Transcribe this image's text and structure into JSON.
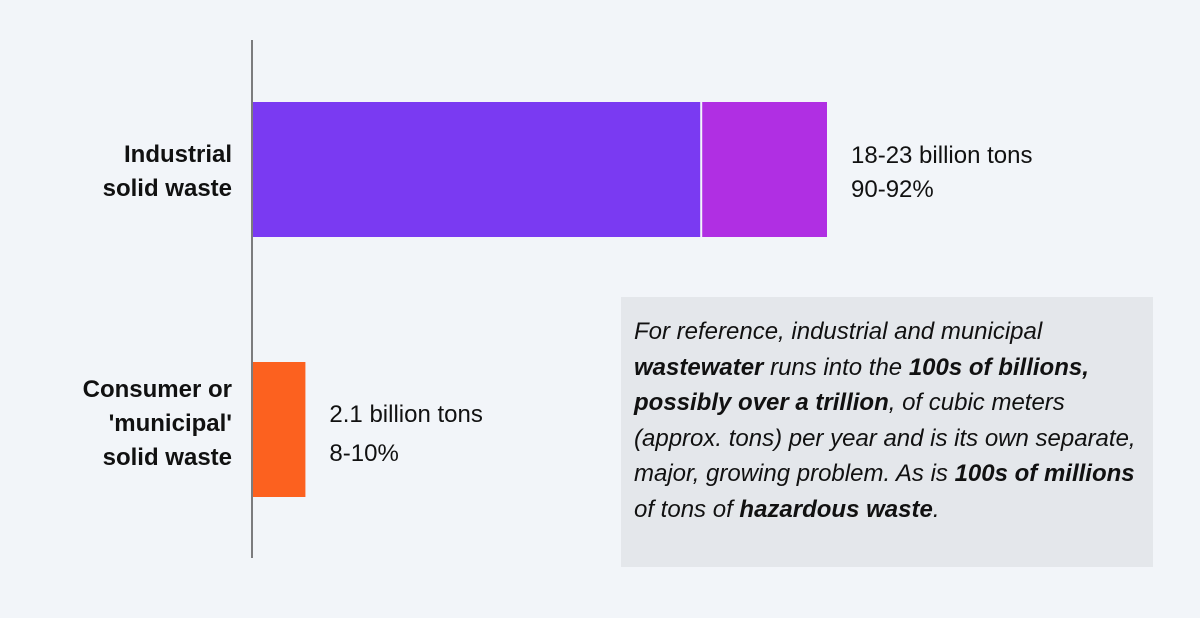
{
  "chart_data": {
    "type": "bar",
    "orientation": "horizontal",
    "categories": [
      [
        "Industrial",
        "solid waste"
      ],
      [
        "Consumer or",
        "'municipal'",
        "solid waste"
      ]
    ],
    "bars": [
      {
        "segments": [
          {
            "value": 18,
            "color": "#7a3af2"
          },
          {
            "value": 5,
            "color": "#b02fe3"
          }
        ],
        "labels": [
          "18-23 billion tons",
          "90-92%"
        ]
      },
      {
        "segments": [
          {
            "value": 2.1,
            "color": "#fc611f"
          }
        ],
        "labels": [
          "2.1 billion tons",
          "8-10%"
        ]
      }
    ],
    "units": "billion tons",
    "xlim": [
      0,
      23
    ],
    "grid": false,
    "legend": "none"
  },
  "note": {
    "runs": [
      {
        "text": "For reference, industrial and municipal ",
        "bold": false
      },
      {
        "text": "wastewater",
        "bold": true
      },
      {
        "text": " runs into the ",
        "bold": false
      },
      {
        "text": "100s of billions, possibly over a trillion",
        "bold": true
      },
      {
        "text": ", of cubic meters (approx. tons) per year and is its own separate, major, growing problem. As is ",
        "bold": false
      },
      {
        "text": "100s of millions",
        "bold": true
      },
      {
        "text": " of tons of ",
        "bold": false
      },
      {
        "text": "hazardous waste",
        "bold": true
      },
      {
        "text": ".",
        "bold": false
      }
    ]
  },
  "colors": {
    "background": "#f2f5f9",
    "note_background": "#e4e7eb",
    "axis": "#555555"
  }
}
